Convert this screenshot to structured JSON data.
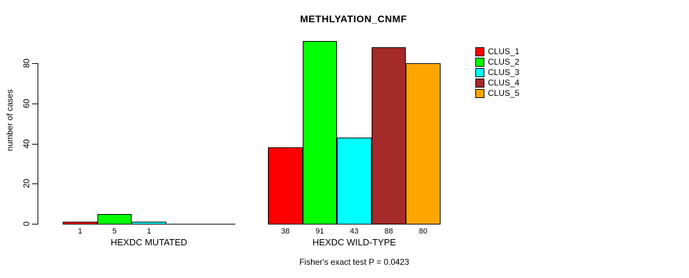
{
  "chart_data": {
    "type": "bar",
    "title": "METHLYATION_CNMF",
    "ylabel": "number of cases",
    "footnote": "Fisher's exact test P = 0.0423",
    "ylim": [
      0,
      91
    ],
    "yticks": [
      0,
      20,
      40,
      60,
      80
    ],
    "grid": false,
    "legend_position": "right",
    "categories": [
      "HEXDC MUTATED",
      "HEXDC WILD-TYPE"
    ],
    "series": [
      {
        "name": "CLUS_1",
        "color": "#FF0000",
        "values": [
          1,
          38
        ]
      },
      {
        "name": "CLUS_2",
        "color": "#00FF00",
        "values": [
          5,
          91
        ]
      },
      {
        "name": "CLUS_3",
        "color": "#00FFFF",
        "values": [
          1,
          43
        ]
      },
      {
        "name": "CLUS_4",
        "color": "#A52A2A",
        "values": [
          0,
          88
        ]
      },
      {
        "name": "CLUS_5",
        "color": "#FFA500",
        "values": [
          0,
          80
        ]
      }
    ],
    "bar_value_labels": [
      [
        "1",
        "5",
        "1",
        "",
        ""
      ],
      [
        "38",
        "91",
        "43",
        "88",
        "80"
      ]
    ],
    "axis_color": "#000000",
    "background_color": "#FFFFFF"
  }
}
